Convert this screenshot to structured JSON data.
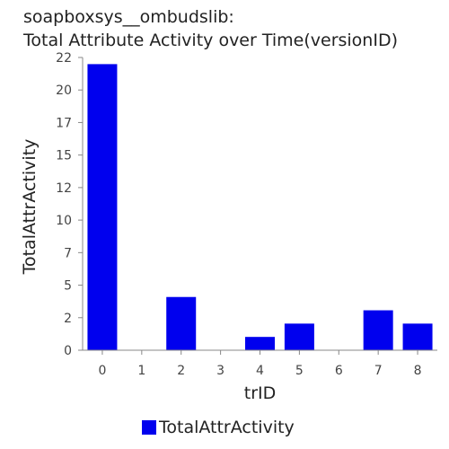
{
  "chart_data": {
    "type": "bar",
    "title_line1": "soapboxsys__ombudslib:",
    "title_line2": "Total Attribute Activity over Time(versionID)",
    "xlabel": "trID",
    "ylabel": "TotalAttrActivity",
    "categories": [
      "0",
      "1",
      "2",
      "3",
      "4",
      "5",
      "6",
      "7",
      "8"
    ],
    "series": [
      {
        "name": "TotalAttrActivity",
        "color": "#0000ee",
        "values": [
          21.5,
          0,
          4,
          0,
          1,
          2,
          0,
          3,
          2
        ]
      }
    ],
    "ylim": [
      0,
      22
    ],
    "yticks": [
      "0",
      "2",
      "5",
      "7",
      "10",
      "12",
      "15",
      "17",
      "20",
      "22"
    ],
    "grid": false,
    "legend_position": "bottom"
  }
}
